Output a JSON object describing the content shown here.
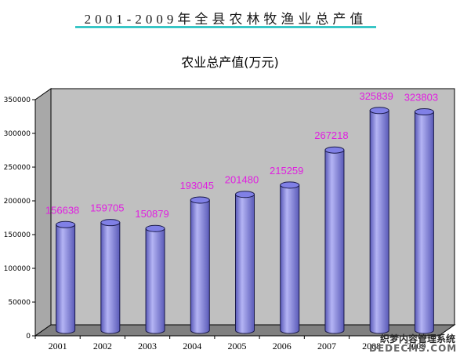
{
  "page": {
    "title": "2001-2009年全县农林牧渔业总产值"
  },
  "watermark": {
    "line1": "织梦内容管理系统",
    "line2": "DEDECMS.COM"
  },
  "colors": {
    "wall": "#c0c0c0",
    "floor": "#808080",
    "bar_light": "#b4b4f4",
    "bar_mid": "#8080e6",
    "bar_dark": "#5a5ab8",
    "label": "#e020e0",
    "title_underline": "#39c6c6"
  },
  "chart_data": {
    "type": "bar",
    "style": "3d-cylinder",
    "title": "农业总产值(万元)",
    "xlabel": "",
    "ylabel": "",
    "categories": [
      "2001",
      "2002",
      "2003",
      "2004",
      "2005",
      "2006",
      "2007",
      "2008",
      "2009"
    ],
    "values": [
      156638,
      159705,
      150879,
      193045,
      201480,
      215259,
      267218,
      325839,
      323803
    ],
    "ylim": [
      0,
      350000
    ],
    "yticks": [
      "0",
      "50000",
      "100000",
      "150000",
      "200000",
      "250000",
      "300000",
      "350000"
    ],
    "grid": false,
    "legend": "none",
    "data_labels": true
  }
}
